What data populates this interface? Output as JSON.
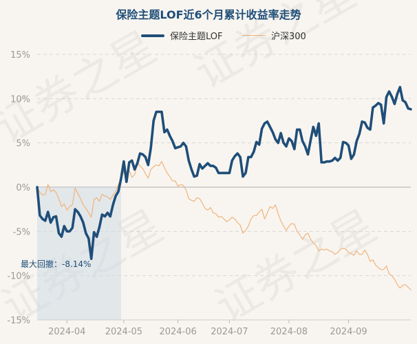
{
  "chart_data": {
    "type": "line",
    "title": "保险主题LOF近6个月累计收益率走势",
    "yticks": [
      "15%",
      "10%",
      "5%",
      "0%",
      "-5%",
      "-10%",
      "-15%"
    ],
    "ylim": [
      -15,
      15
    ],
    "xticks": [
      "2024-04",
      "2024-05",
      "2024-06",
      "2024-07",
      "2024-08",
      "2024-09"
    ],
    "grid": true,
    "legend_position": "top-center",
    "annotation": "最大回撤：-8.14%",
    "max_drawdown": -8.14,
    "drawdown_span": [
      0,
      31
    ],
    "series": [
      {
        "name": "保险主题LOF",
        "color": "#1f4e79",
        "values": [
          0,
          -3.2,
          -3.6,
          -3.8,
          -2.8,
          -4.0,
          -3.4,
          -3.3,
          -5.2,
          -5.6,
          -4.4,
          -5.0,
          -5.0,
          -4.6,
          -2.5,
          -2.8,
          -3.3,
          -4.0,
          -5.2,
          -5.8,
          -8.1,
          -5.1,
          -5.6,
          -4.5,
          -3.1,
          -3.3,
          -2.9,
          -3.3,
          -2.0,
          -1.0,
          -0.5,
          1.0,
          2.9,
          0.6,
          2.8,
          3.0,
          2.0,
          2.7,
          3.8,
          3.7,
          3.4,
          2.5,
          4.5,
          7.5,
          8.5,
          8.5,
          8.5,
          6.2,
          6.5,
          5.8,
          5.2,
          4.4,
          4.5,
          4.6,
          5.0,
          4.6,
          3.0,
          2.0,
          1.2,
          1.3,
          2.6,
          2.1,
          2.4,
          2.7,
          2.4,
          2.4,
          2.2,
          1.6,
          1.6,
          1.6,
          1.6,
          1.6,
          3.0,
          3.5,
          3.8,
          3.4,
          1.2,
          1.6,
          3.4,
          3.4,
          4.0,
          5.1,
          4.8,
          6.6,
          7.2,
          7.4,
          6.8,
          6.2,
          5.4,
          5.0,
          6.1,
          5.0,
          4.6,
          5.5,
          5.2,
          4.3,
          6.5,
          6.5,
          5.2,
          4.6,
          3.7,
          5.3,
          6.8,
          5.8,
          7.2,
          2.8,
          2.8,
          2.9,
          2.9,
          3.0,
          3.3,
          3.0,
          3.3,
          5.1,
          5.0,
          4.7,
          3.2,
          3.7,
          5.2,
          6.0,
          7.4,
          7.3,
          6.7,
          6.5,
          9.0,
          9.2,
          9.5,
          9.3,
          7.2,
          10.2,
          10.8,
          10.2,
          9.4,
          10.5,
          11.3,
          9.8,
          9.6,
          8.9,
          8.8
        ]
      },
      {
        "name": "沪深300",
        "color": "#f0b47a",
        "values": [
          0,
          -0.6,
          -0.9,
          -0.8,
          0.3,
          -0.5,
          -0.3,
          -0.6,
          -1.3,
          -2.2,
          -1.9,
          -2.6,
          -2.2,
          -2.0,
          -0.1,
          -0.7,
          -1.3,
          -2.0,
          -2.4,
          -2.9,
          -3.4,
          -1.4,
          -1.2,
          -1.6,
          -0.8,
          -1.0,
          -1.1,
          -1.4,
          -0.9,
          -0.5,
          0.3,
          0.9,
          1.8,
          1.1,
          1.9,
          1.1,
          1.4,
          2.7,
          2.4,
          2.1,
          1.5,
          1.0,
          2.0,
          2.3,
          2.5,
          2.4,
          2.9,
          2.2,
          1.6,
          1.2,
          0.7,
          0.7,
          0.1,
          0.3,
          0.2,
          -0.3,
          -1.3,
          -1.5,
          -1.6,
          -1.2,
          -1.3,
          -1.8,
          -2.4,
          -2.6,
          -2.3,
          -2.9,
          -3.0,
          -3.4,
          -3.3,
          -3.6,
          -3.9,
          -3.7,
          -3.4,
          -3.6,
          -4.0,
          -4.3,
          -5.2,
          -4.9,
          -4.4,
          -3.6,
          -3.2,
          -3.2,
          -2.8,
          -2.5,
          -3.6,
          -2.9,
          -2.2,
          -2.4,
          -2.0,
          -3.0,
          -3.8,
          -4.4,
          -4.9,
          -4.4,
          -4.1,
          -4.2,
          -5.0,
          -5.4,
          -5.9,
          -5.4,
          -5.2,
          -5.9,
          -6.3,
          -6.6,
          -7.2,
          -7.0,
          -7.1,
          -7.0,
          -7.2,
          -7.3,
          -7.6,
          -7.4,
          -7.0,
          -6.9,
          -7.0,
          -7.4,
          -7.5,
          -7.7,
          -7.2,
          -7.6,
          -7.6,
          -7.1,
          -7.6,
          -8.4,
          -8.2,
          -8.8,
          -9.1,
          -9.3,
          -9.3,
          -8.9,
          -9.8,
          -10.0,
          -10.4,
          -11.0,
          -11.4,
          -11.1,
          -11.0,
          -11.3,
          -11.6
        ]
      }
    ]
  },
  "watermark_text": [
    "证券之星",
    "证券之星",
    "证券之星",
    "证券之星"
  ]
}
